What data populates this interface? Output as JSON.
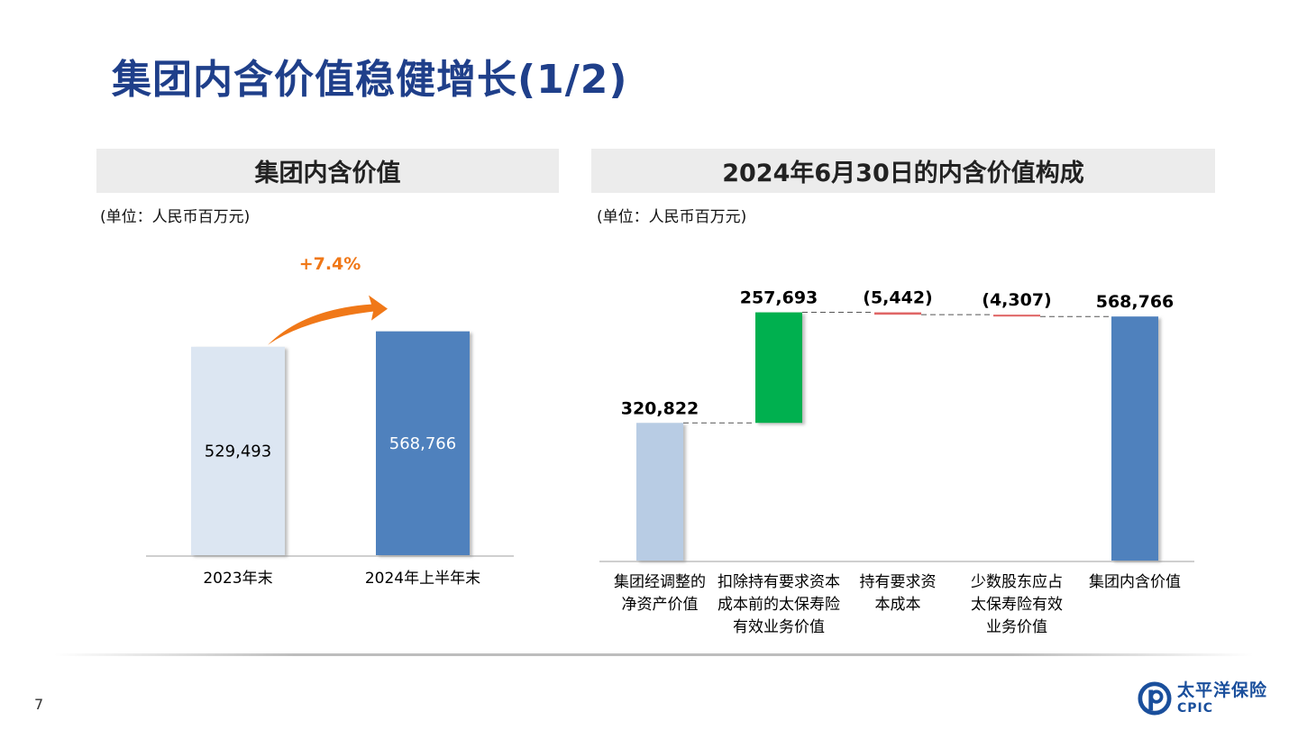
{
  "title": "集团内含价值稳健增长(1/2)",
  "left_panel": {
    "header": "集团内含价值",
    "unit": "(单位：人民币百万元)",
    "growth_label": "+7.4%"
  },
  "right_panel": {
    "header": "2024年6月30日的内含价值构成",
    "unit": "(单位：人民币百万元)"
  },
  "colors": {
    "title": "#1f3f8a",
    "bar_light": "#dce6f2",
    "bar_blue": "#4f81bd",
    "bar_pale_blue": "#b8cce4",
    "bar_green": "#00b050",
    "negative_red": "#e06666",
    "arrow_orange": "#f07818"
  },
  "chart_data": [
    {
      "type": "bar",
      "categories": [
        "2023年末",
        "2024年上半年末"
      ],
      "values": [
        529493,
        568766
      ],
      "value_labels": [
        "529,493",
        "568,766"
      ],
      "annotations": [
        "+7.4%"
      ],
      "ylim": [
        0,
        600000
      ]
    },
    {
      "type": "waterfall",
      "categories": [
        [
          "集团经调整的",
          "净资产价值"
        ],
        [
          "扣除持有要求资本",
          "成本前的太保寿险",
          "有效业务价值"
        ],
        [
          "持有要求资",
          "本成本"
        ],
        [
          "少数股东应占",
          "太保寿险有效",
          "业务价值"
        ],
        [
          "集团内含价值"
        ]
      ],
      "values": [
        320822,
        257693,
        -5442,
        -4307,
        568766
      ],
      "value_labels": [
        "320,822",
        "257,693",
        "(5,442)",
        "(4,307)",
        "568,766"
      ],
      "kinds": [
        "total",
        "increase",
        "decrease",
        "decrease",
        "total"
      ],
      "ylim": [
        0,
        600000
      ]
    }
  ],
  "footer": {
    "page_number": "7",
    "logo_cn": "太平洋保险",
    "logo_en": "CPIC"
  }
}
